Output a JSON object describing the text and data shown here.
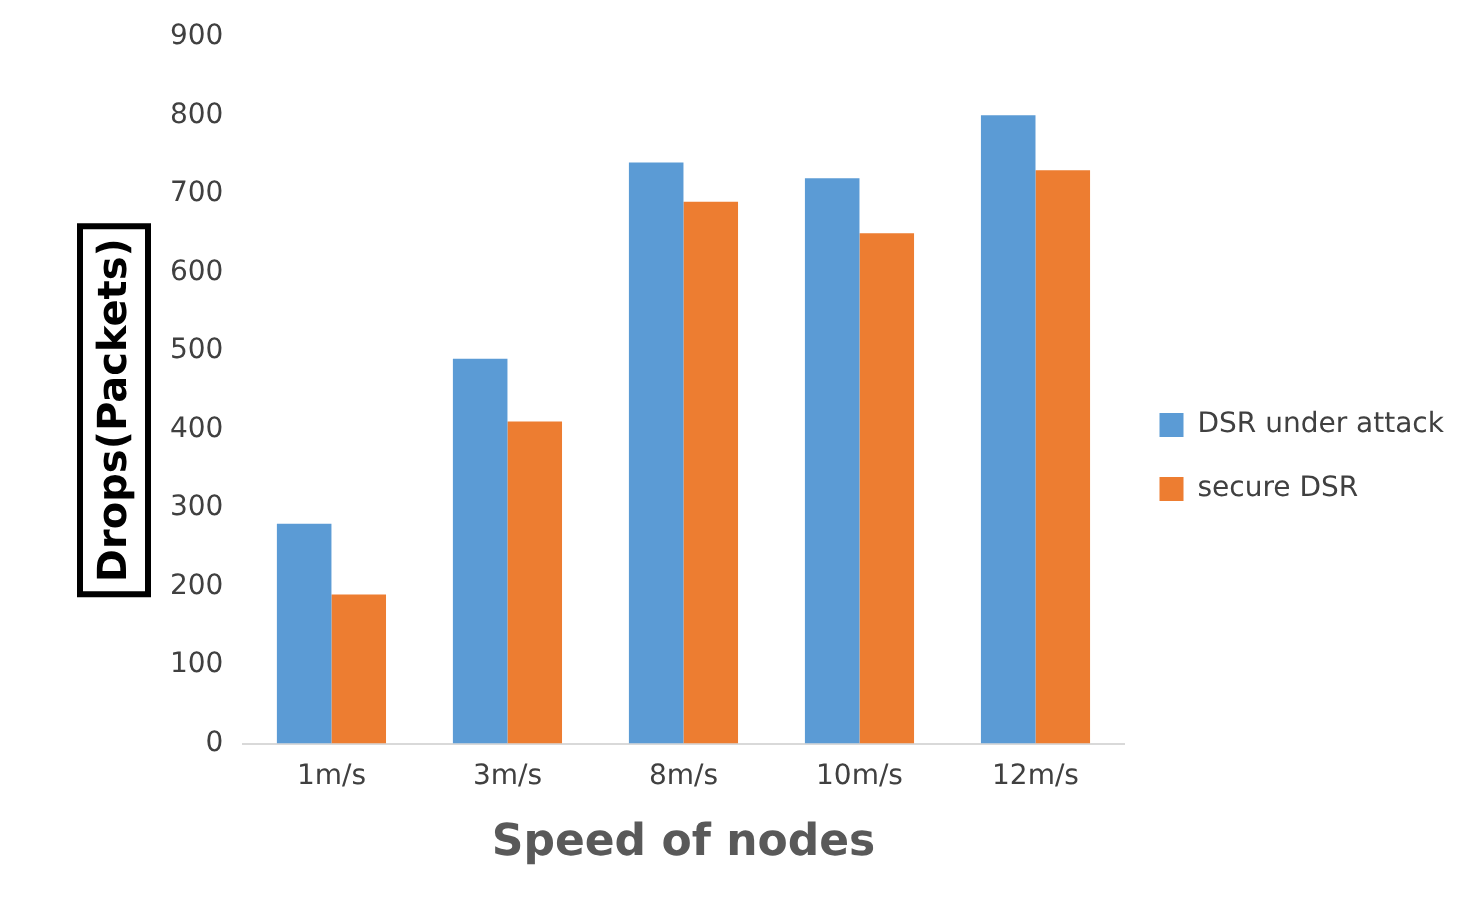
{
  "chart_data": {
    "type": "bar",
    "xlabel": "Speed of nodes",
    "ylabel": "Drops(Packets)",
    "categories": [
      "1m/s",
      "3m/s",
      "8m/s",
      "10m/s",
      "12m/s"
    ],
    "series": [
      {
        "name": "DSR under attack",
        "color": "#5b9bd5",
        "values": [
          280,
          490,
          740,
          720,
          800
        ]
      },
      {
        "name": "secure DSR",
        "color": "#ed7d31",
        "values": [
          190,
          410,
          690,
          650,
          730
        ]
      }
    ],
    "ylim": [
      0,
      900
    ],
    "yticks": [
      0,
      100,
      200,
      300,
      400,
      500,
      600,
      700,
      800,
      900
    ],
    "grid": false,
    "legend": "right"
  }
}
